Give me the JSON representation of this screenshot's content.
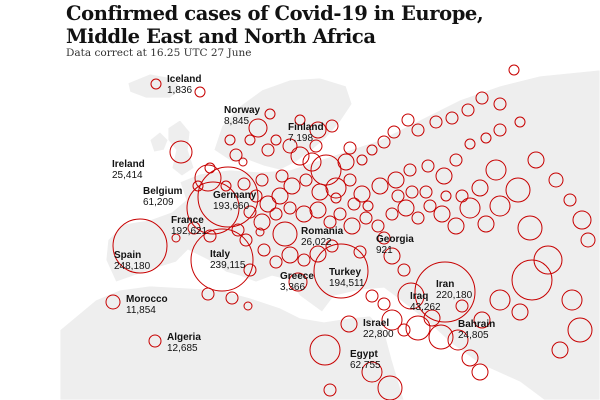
{
  "header": {
    "title": "Confirmed cases of Covid-19 in Europe, Middle East and North Africa",
    "subtitle": "Data correct at 16.25 UTC 27 June"
  },
  "colors": {
    "bubble": "#c70000",
    "land": "#eeeeee",
    "sea": "#ffffff",
    "text": "#121212"
  },
  "labelled_countries": [
    {
      "name": "Iceland",
      "cases": "1,836"
    },
    {
      "name": "Norway",
      "cases": "8,845"
    },
    {
      "name": "Finland",
      "cases": "7,198"
    },
    {
      "name": "Ireland",
      "cases": "25,414"
    },
    {
      "name": "Belgium",
      "cases": "61,209"
    },
    {
      "name": "Germany",
      "cases": "193,660"
    },
    {
      "name": "France",
      "cases": "192,621"
    },
    {
      "name": "Romania",
      "cases": "26,022"
    },
    {
      "name": "Georgia",
      "cases": "921"
    },
    {
      "name": "Spain",
      "cases": "248,180"
    },
    {
      "name": "Italy",
      "cases": "239,115"
    },
    {
      "name": "Greece",
      "cases": "3,366"
    },
    {
      "name": "Turkey",
      "cases": "194,511"
    },
    {
      "name": "Iran",
      "cases": "220,180"
    },
    {
      "name": "Iraq",
      "cases": "43,262"
    },
    {
      "name": "Morocco",
      "cases": "11,854"
    },
    {
      "name": "Israel",
      "cases": "22,800"
    },
    {
      "name": "Bahrain",
      "cases": "24,805"
    },
    {
      "name": "Algeria",
      "cases": "12,685"
    },
    {
      "name": "Egypt",
      "cases": "62,755"
    }
  ]
}
